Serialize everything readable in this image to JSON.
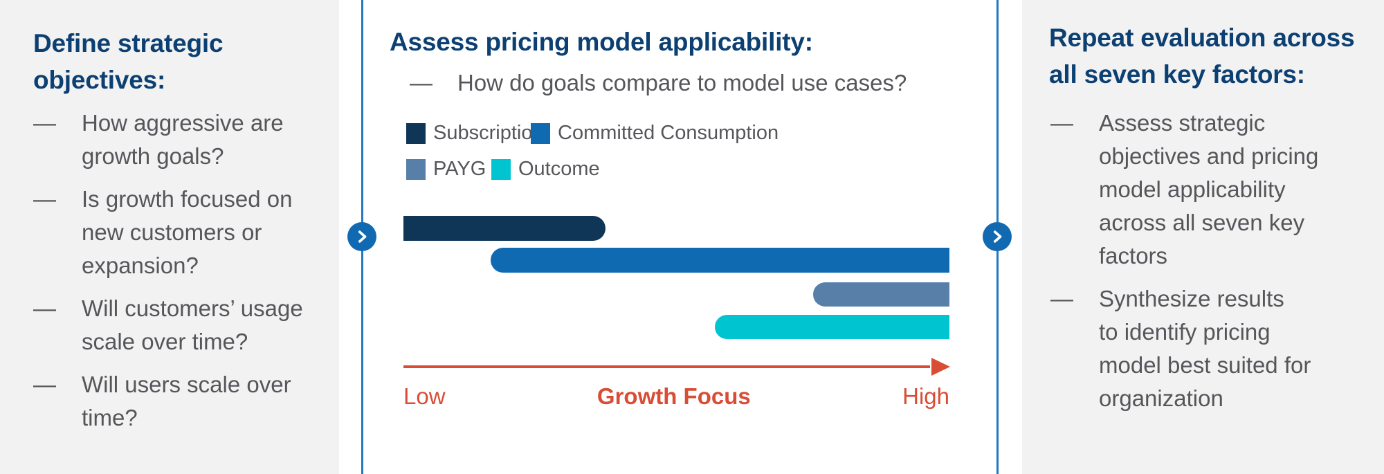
{
  "colors": {
    "title_navy": "#0d4072",
    "body_text_gray": "#55565a",
    "panel_background": "#f2f2f2",
    "divider_blue": "#2278be",
    "arrow_button_blue": "#1169b2",
    "axis_red": "#d94d35",
    "bar_navy": "#0f3557",
    "bar_blue": "#0f6ab2",
    "bar_steel": "#577fa7",
    "bar_cyan": "#00c5d1"
  },
  "icons": {
    "next_arrow_button": "chevron-right-icon"
  },
  "left_panel": {
    "title": "Define strategic\nobjectives:",
    "bullet_marker": "—",
    "bullets": [
      "How aggressive are\ngrowth goals?",
      "Is growth focused on\nnew customers or\nexpansion?",
      "Will customers’ usage\nscale over time?",
      "Will users scale over\ntime?"
    ]
  },
  "middle_panel": {
    "title": "Assess pricing model applicability:",
    "bullet_marker": "—",
    "bullet": "How do goals compare to model use cases?",
    "legend": [
      {
        "label": "Subscription",
        "color": "#0f3557"
      },
      {
        "label": "Committed Consumption",
        "color": "#0f6ab2"
      },
      {
        "label": "PAYG",
        "color": "#577fa7"
      },
      {
        "label": "Outcome",
        "color": "#00c5d1"
      }
    ],
    "axis": {
      "left_label": "Low",
      "center_label": "Growth Focus",
      "right_label": "High"
    }
  },
  "right_panel": {
    "title": "Repeat evaluation across\nall seven key factors:",
    "bullet_marker": "—",
    "bullets": [
      "Assess strategic\nobjectives and pricing\nmodel applicability\nacross all seven key\nfactors",
      "Synthesize results\nto identify pricing\nmodel best suited for\norganization"
    ]
  },
  "chart_data": {
    "type": "bar",
    "orientation": "horizontal-range",
    "title": "Assess pricing model applicability:",
    "categories": [
      "Subscription",
      "Committed Consumption",
      "PAYG",
      "Outcome"
    ],
    "series": [
      {
        "name": "Growth Focus applicability range (% of axis, Low=0 to High=100)",
        "ranges_pct": [
          [
            0,
            37
          ],
          [
            16,
            100
          ],
          [
            75,
            100
          ],
          [
            57,
            100
          ]
        ]
      }
    ],
    "colors": [
      "#0f3557",
      "#0f6ab2",
      "#577fa7",
      "#00c5d1"
    ],
    "xlabel": "Growth Focus",
    "x_axis_endpoints": [
      "Low",
      "High"
    ],
    "xlim": [
      0,
      100
    ],
    "grid": false,
    "legend_position": "top"
  }
}
